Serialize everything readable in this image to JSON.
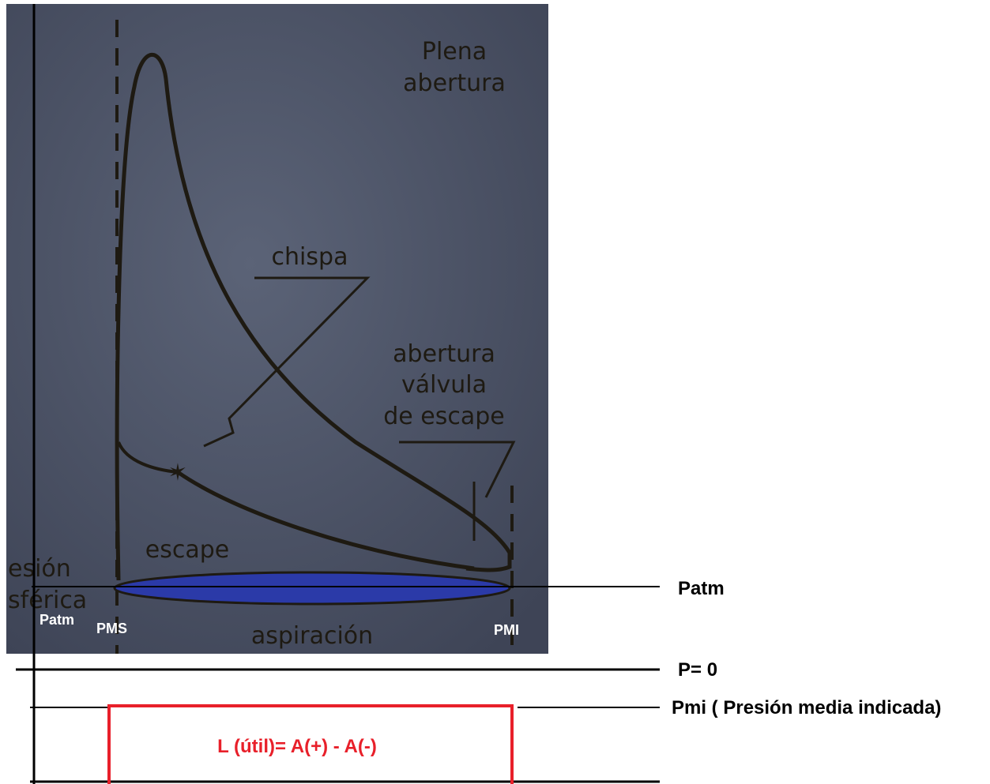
{
  "photo": {
    "title_lines": [
      "Plena",
      "abertura"
    ],
    "spark_label": "chispa",
    "valve_label_lines": [
      "abertura",
      "válvula",
      "de escape"
    ],
    "exhaust_label": "escape",
    "intake_label": "aspiración",
    "side_label_lines": [
      "esión",
      "sférica"
    ],
    "patm_small": "Patm",
    "pms": "PMS",
    "pmi": "PMI"
  },
  "annotations": {
    "patm": "Patm",
    "p_zero": "P= 0",
    "pmi_line": "Pmi ( Presión media indicada)",
    "work": "L (útil)= A(+) - A(-)"
  }
}
